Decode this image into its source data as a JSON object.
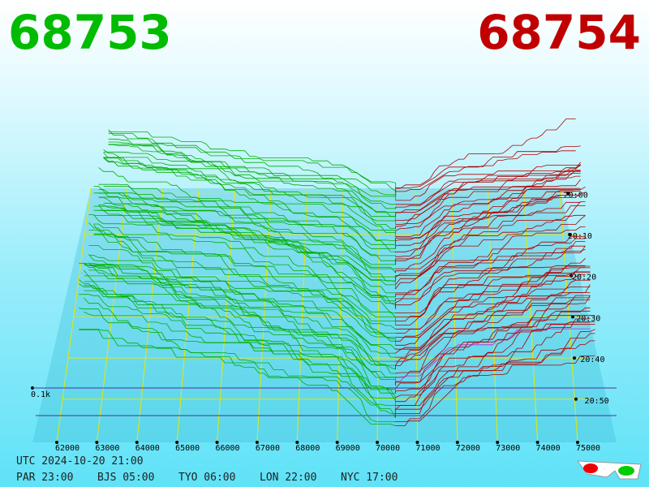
{
  "header": {
    "bid": "68753",
    "ask": "68754"
  },
  "axis": {
    "price_ticks": [
      62000,
      63000,
      64000,
      65000,
      66000,
      67000,
      68000,
      69000,
      70000,
      71000,
      72000,
      73000,
      74000,
      75000
    ],
    "time_ticks": [
      "20:00",
      "20:10",
      "20:20",
      "20:30",
      "20:40",
      "20:50"
    ],
    "size_label": "0.1k"
  },
  "footer": {
    "utc": "UTC 2024-10-20 21:00",
    "zones": [
      "PAR 23:00",
      "BJS 05:00",
      "TYO 06:00",
      "LON 22:00",
      "NYC 17:00"
    ]
  }
}
